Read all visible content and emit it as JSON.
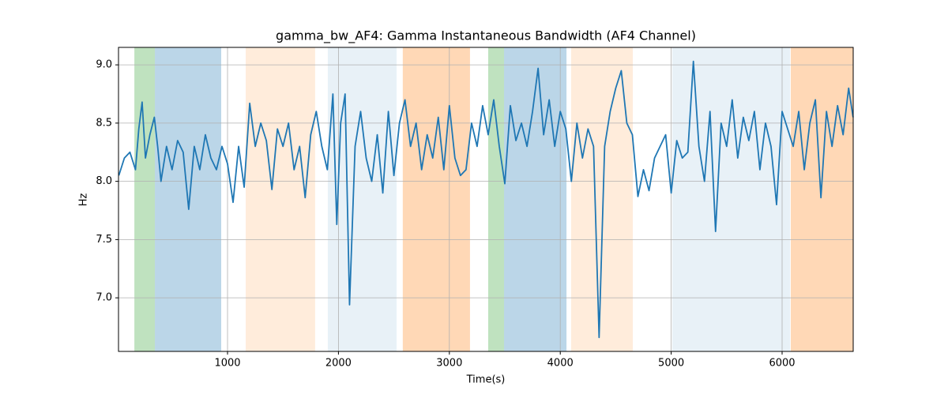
{
  "chart_data": {
    "type": "line",
    "title": "gamma_bw_AF4: Gamma Instantaneous Bandwidth (AF4 Channel)",
    "x_label": "Time(s)",
    "y_label": "Hz",
    "xlim": [
      17,
      6641
    ],
    "ylim": [
      6.54,
      9.15
    ],
    "xticks": [
      1000,
      2000,
      3000,
      4000,
      5000,
      6000
    ],
    "yticks": [
      {
        "value": 7,
        "label": "7.0"
      },
      7.5,
      {
        "value": 8,
        "label": "8.0"
      },
      8.5,
      {
        "value": 9,
        "label": "9.0"
      }
    ],
    "grid": true,
    "spans": [
      {
        "start": 160,
        "end": 345,
        "color": "#2ca02c",
        "alpha": 0.3
      },
      {
        "start": 345,
        "end": 943,
        "color": "#1f77b4",
        "alpha": 0.3
      },
      {
        "start": 1164,
        "end": 1790,
        "color": "#ff7f0e",
        "alpha": 0.15
      },
      {
        "start": 1904,
        "end": 2524,
        "color": "#1f77b4",
        "alpha": 0.1
      },
      {
        "start": 2580,
        "end": 3186,
        "color": "#ff7f0e",
        "alpha": 0.3
      },
      {
        "start": 3350,
        "end": 3493,
        "color": "#2ca02c",
        "alpha": 0.3
      },
      {
        "start": 3493,
        "end": 4056,
        "color": "#1f77b4",
        "alpha": 0.3
      },
      {
        "start": 4098,
        "end": 4654,
        "color": "#ff7f0e",
        "alpha": 0.15
      },
      {
        "start": 5010,
        "end": 6072,
        "color": "#1f77b4",
        "alpha": 0.1
      },
      {
        "start": 6078,
        "end": 6641,
        "color": "#ff7f0e",
        "alpha": 0.3
      }
    ],
    "x": [
      20,
      70,
      120,
      170,
      200,
      230,
      260,
      300,
      340,
      370,
      400,
      450,
      500,
      550,
      600,
      650,
      700,
      750,
      800,
      850,
      900,
      950,
      1000,
      1050,
      1100,
      1150,
      1200,
      1250,
      1300,
      1350,
      1400,
      1450,
      1500,
      1550,
      1600,
      1650,
      1700,
      1750,
      1800,
      1850,
      1900,
      1950,
      1985,
      2020,
      2060,
      2100,
      2150,
      2200,
      2250,
      2300,
      2350,
      2400,
      2450,
      2500,
      2550,
      2600,
      2650,
      2700,
      2750,
      2800,
      2850,
      2900,
      2950,
      3000,
      3050,
      3100,
      3150,
      3200,
      3250,
      3300,
      3350,
      3400,
      3450,
      3500,
      3550,
      3600,
      3650,
      3700,
      3750,
      3800,
      3850,
      3900,
      3950,
      4000,
      4050,
      4100,
      4150,
      4200,
      4250,
      4300,
      4350,
      4400,
      4450,
      4500,
      4550,
      4600,
      4650,
      4700,
      4750,
      4800,
      4850,
      4900,
      4950,
      5000,
      5050,
      5100,
      5150,
      5200,
      5250,
      5300,
      5350,
      5400,
      5450,
      5500,
      5550,
      5600,
      5650,
      5700,
      5750,
      5800,
      5850,
      5900,
      5950,
      6000,
      6050,
      6100,
      6150,
      6200,
      6250,
      6300,
      6350,
      6400,
      6450,
      6500,
      6550,
      6600,
      6640
    ],
    "series": [
      {
        "color": "#1f77b4",
        "values": [
          8.05,
          8.2,
          8.25,
          8.1,
          8.45,
          8.68,
          8.2,
          8.4,
          8.55,
          8.3,
          8.0,
          8.3,
          8.1,
          8.35,
          8.25,
          7.76,
          8.3,
          8.1,
          8.4,
          8.2,
          8.1,
          8.3,
          8.15,
          7.82,
          8.3,
          7.95,
          8.67,
          8.3,
          8.5,
          8.35,
          7.93,
          8.45,
          8.3,
          8.5,
          8.1,
          8.3,
          7.86,
          8.4,
          8.6,
          8.3,
          8.1,
          8.75,
          7.63,
          8.5,
          8.75,
          6.94,
          8.3,
          8.6,
          8.2,
          8.0,
          8.4,
          7.9,
          8.6,
          8.05,
          8.5,
          8.7,
          8.3,
          8.5,
          8.1,
          8.4,
          8.2,
          8.55,
          8.1,
          8.65,
          8.2,
          8.05,
          8.1,
          8.5,
          8.3,
          8.65,
          8.4,
          8.7,
          8.3,
          7.98,
          8.65,
          8.35,
          8.5,
          8.3,
          8.6,
          8.97,
          8.4,
          8.7,
          8.3,
          8.6,
          8.45,
          8.0,
          8.5,
          8.2,
          8.45,
          8.3,
          6.66,
          8.3,
          8.6,
          8.8,
          8.95,
          8.5,
          8.4,
          7.87,
          8.1,
          7.92,
          8.2,
          8.3,
          8.4,
          7.9,
          8.35,
          8.2,
          8.25,
          9.03,
          8.3,
          8.0,
          8.6,
          7.57,
          8.5,
          8.3,
          8.7,
          8.2,
          8.55,
          8.35,
          8.6,
          8.1,
          8.5,
          8.3,
          7.8,
          8.6,
          8.45,
          8.3,
          8.6,
          8.1,
          8.5,
          8.7,
          7.86,
          8.6,
          8.3,
          8.65,
          8.4,
          8.8,
          8.55
        ]
      }
    ]
  }
}
